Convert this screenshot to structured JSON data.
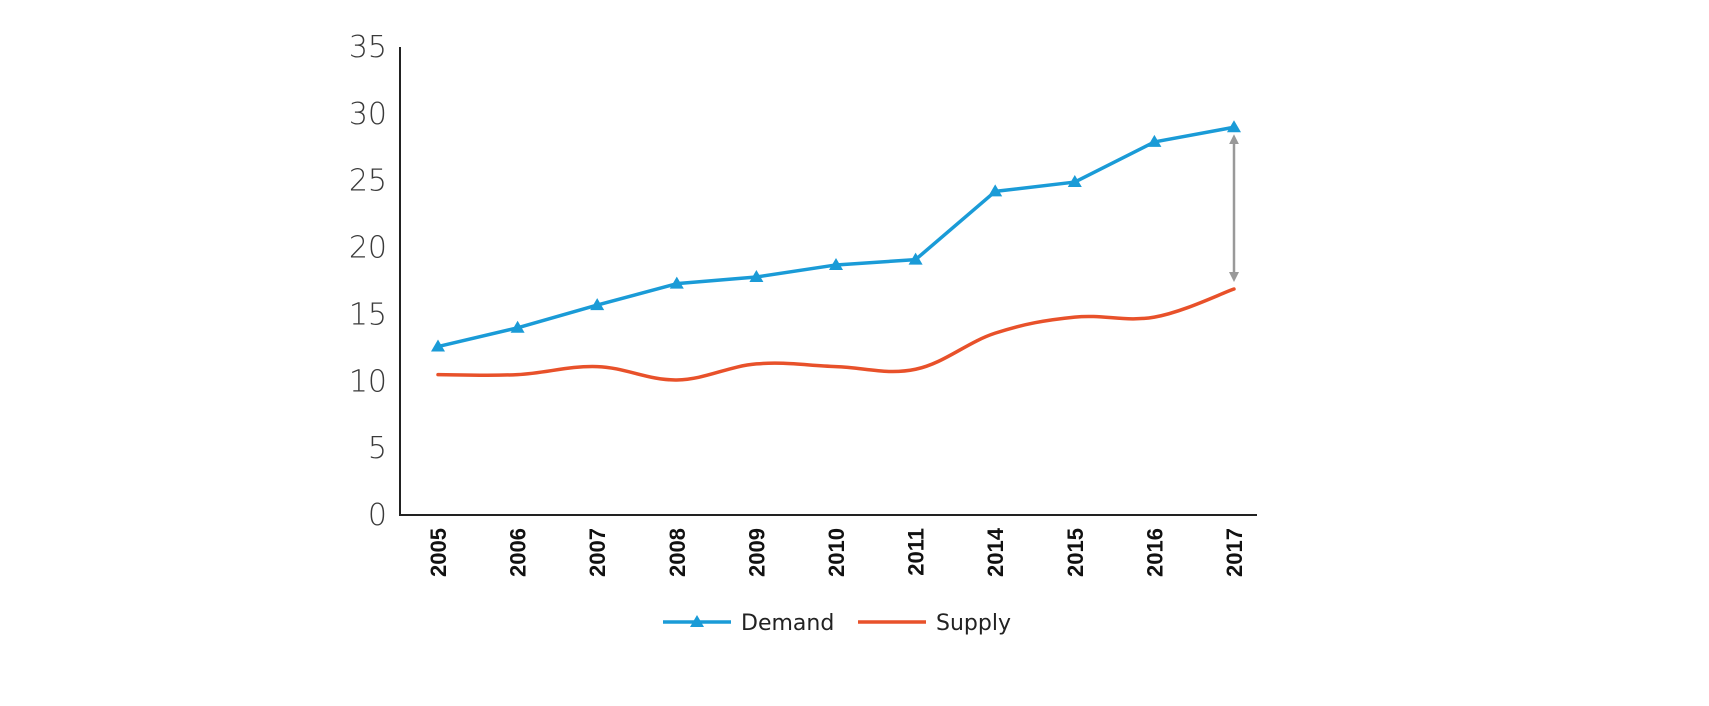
{
  "chart_data": {
    "type": "line",
    "title": "",
    "xlabel": "",
    "ylabel": "",
    "categories": [
      "2005",
      "2006",
      "2007",
      "2008",
      "2009",
      "2010",
      "2011",
      "2014",
      "2015",
      "2016",
      "2017"
    ],
    "ylim": [
      0,
      35
    ],
    "yticks": [
      0,
      5,
      10,
      15,
      20,
      25,
      30,
      35
    ],
    "grid": false,
    "legend_position": "bottom",
    "series": [
      {
        "name": "Demand",
        "color": "#1a9bd7",
        "marker": "triangle",
        "smooth": false,
        "values": [
          12.6,
          14.0,
          15.7,
          17.3,
          17.8,
          18.7,
          19.1,
          24.2,
          24.9,
          27.9,
          29.0
        ]
      },
      {
        "name": "Supply",
        "color": "#e8512a",
        "marker": "none",
        "smooth": true,
        "values": [
          10.5,
          10.5,
          11.1,
          10.1,
          11.3,
          11.1,
          10.9,
          13.6,
          14.8,
          14.8,
          16.9
        ]
      }
    ],
    "annotation": {
      "type": "double-arrow",
      "category": "2017",
      "from": 16.9,
      "to": 29.0,
      "color": "#999999"
    }
  }
}
